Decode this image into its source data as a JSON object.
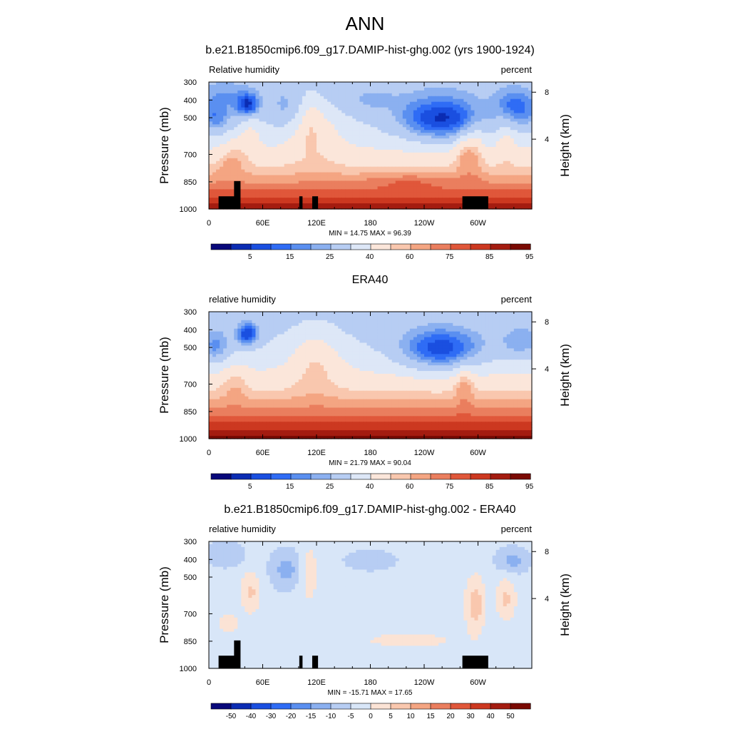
{
  "main_title": "ANN",
  "palettes": {
    "abs": [
      "#08087a",
      "#0b2cb3",
      "#1a4fe0",
      "#2f6cf5",
      "#5a8ff0",
      "#8bb0f0",
      "#b7cdf3",
      "#dde7f7",
      "#fbe6da",
      "#f9c7ae",
      "#f4a582",
      "#ea7e5e",
      "#e0573a",
      "#cc3820",
      "#a41c10",
      "#7a0a03"
    ],
    "diff": [
      "#08087a",
      "#0b2cb3",
      "#1a4fe0",
      "#2f6cf5",
      "#5a8ff0",
      "#8bb0f0",
      "#b7cdf3",
      "#d8e6f8",
      "#fbe3d5",
      "#f9c7ae",
      "#f4a582",
      "#ea7e5e",
      "#e0573a",
      "#cc3820",
      "#a41c10",
      "#7a0a03"
    ]
  },
  "chart_data": [
    {
      "type": "heatmap",
      "title": "b.e21.B1850cmip6.f09_g17.DAMIP-hist-ghg.002 (yrs 1900-1924)",
      "left_label": "Relative humidity",
      "right_label": "percent",
      "ylabel": "Pressure (mb)",
      "y2label": "Height (km)",
      "x_ticks": [
        "0",
        "60E",
        "120E",
        "180",
        "120W",
        "60W"
      ],
      "y_ticks": [
        "300",
        "400",
        "500",
        "700",
        "850",
        "1000"
      ],
      "y2_ticks": [
        "8",
        "4"
      ],
      "stats": "MIN =  14.75  MAX =  96.39",
      "colorbar_labels": [
        "5",
        "15",
        "25",
        "40",
        "60",
        "75",
        "85",
        "95"
      ],
      "colorbar_levels": [
        5,
        10,
        15,
        20,
        25,
        30,
        40,
        50,
        60,
        65,
        70,
        75,
        80,
        85,
        90,
        95
      ],
      "palette": "abs",
      "field": "model",
      "topography": true
    },
    {
      "type": "heatmap",
      "title": "ERA40",
      "left_label": "relative humidity",
      "right_label": "percent",
      "ylabel": "Pressure (mb)",
      "y2label": "Height (km)",
      "x_ticks": [
        "0",
        "60E",
        "120E",
        "180",
        "120W",
        "60W"
      ],
      "y_ticks": [
        "300",
        "400",
        "500",
        "700",
        "850",
        "1000"
      ],
      "y2_ticks": [
        "8",
        "4"
      ],
      "stats": "MIN =  21.79  MAX =  90.04",
      "colorbar_labels": [
        "5",
        "15",
        "25",
        "40",
        "60",
        "75",
        "85",
        "95"
      ],
      "colorbar_levels": [
        5,
        10,
        15,
        20,
        25,
        30,
        40,
        50,
        60,
        65,
        70,
        75,
        80,
        85,
        90,
        95
      ],
      "palette": "abs",
      "field": "obs",
      "topography": false
    },
    {
      "type": "heatmap",
      "title": "b.e21.B1850cmip6.f09_g17.DAMIP-hist-ghg.002 - ERA40",
      "left_label": "relative humidity",
      "right_label": "percent",
      "ylabel": "Pressure (mb)",
      "y2label": "Height (km)",
      "x_ticks": [
        "0",
        "60E",
        "120E",
        "180",
        "120W",
        "60W"
      ],
      "y_ticks": [
        "300",
        "400",
        "500",
        "700",
        "850",
        "1000"
      ],
      "y2_ticks": [
        "8",
        "4"
      ],
      "stats": "MIN = -15.71  MAX =  17.65",
      "colorbar_labels": [
        "-50",
        "-40",
        "-30",
        "-20",
        "-15",
        "-10",
        "-5",
        "0",
        "5",
        "10",
        "15",
        "20",
        "30",
        "40",
        "50"
      ],
      "colorbar_levels": [
        -50,
        -40,
        -30,
        -20,
        -15,
        -10,
        -5,
        0,
        5,
        10,
        15,
        20,
        30,
        40,
        50
      ],
      "palette": "diff",
      "field": "diff",
      "topography": true
    }
  ]
}
